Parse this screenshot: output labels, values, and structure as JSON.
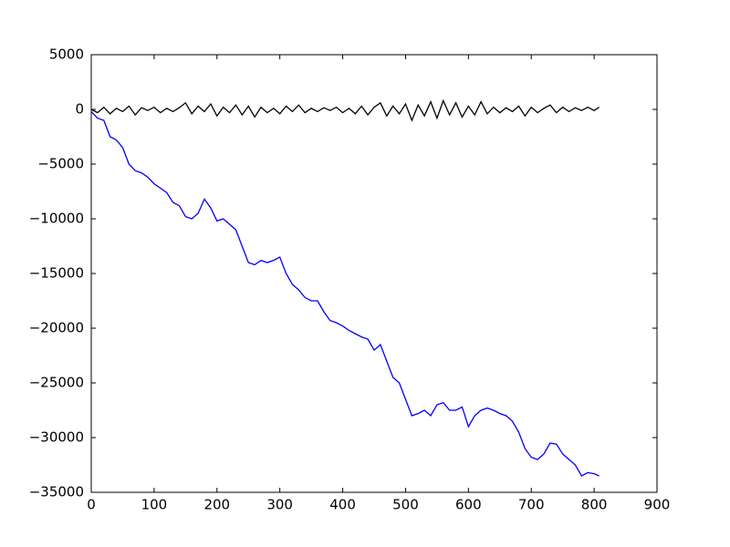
{
  "chart_data": {
    "type": "line",
    "x": [
      0,
      10,
      20,
      30,
      40,
      50,
      60,
      70,
      80,
      90,
      100,
      110,
      120,
      130,
      140,
      150,
      160,
      170,
      180,
      190,
      200,
      210,
      220,
      230,
      240,
      250,
      260,
      270,
      280,
      290,
      300,
      310,
      320,
      330,
      340,
      350,
      360,
      370,
      380,
      390,
      400,
      410,
      420,
      430,
      440,
      450,
      460,
      470,
      480,
      490,
      500,
      510,
      520,
      530,
      540,
      550,
      560,
      570,
      580,
      590,
      600,
      610,
      620,
      630,
      640,
      650,
      660,
      670,
      680,
      690,
      700,
      710,
      720,
      730,
      740,
      750,
      760,
      770,
      780,
      790,
      800,
      808
    ],
    "series": [
      {
        "color": "#000000",
        "values": [
          0,
          -300,
          200,
          -400,
          100,
          -200,
          300,
          -500,
          150,
          -100,
          200,
          -300,
          100,
          -200,
          150,
          600,
          -400,
          300,
          -200,
          500,
          -600,
          200,
          -300,
          400,
          -500,
          300,
          -700,
          200,
          -300,
          100,
          -400,
          300,
          -200,
          400,
          -300,
          100,
          -200,
          150,
          -100,
          200,
          -300,
          100,
          -400,
          300,
          -500,
          200,
          600,
          -600,
          300,
          -400,
          500,
          -1000,
          400,
          -600,
          700,
          -800,
          800,
          -500,
          600,
          -700,
          300,
          -500,
          700,
          -400,
          200,
          -300,
          150,
          -200,
          300,
          -600,
          200,
          -300,
          100,
          400,
          -300,
          200,
          -200,
          150,
          -100,
          200,
          -100,
          200
        ]
      },
      {
        "color": "#0000ff",
        "values": [
          -200,
          -800,
          -1000,
          -2500,
          -2800,
          -3500,
          -5000,
          -5600,
          -5800,
          -6200,
          -6800,
          -7200,
          -7600,
          -8500,
          -8800,
          -9800,
          -10000,
          -9500,
          -8200,
          -9000,
          -10200,
          -10000,
          -10500,
          -11000,
          -12500,
          -14000,
          -14200,
          -13800,
          -14000,
          -13800,
          -13500,
          -15000,
          -16000,
          -16500,
          -17200,
          -17500,
          -17500,
          -18500,
          -19300,
          -19500,
          -19800,
          -20200,
          -20500,
          -20800,
          -21000,
          -22000,
          -21500,
          -23000,
          -24500,
          -25000,
          -26500,
          -28000,
          -27800,
          -27500,
          -28000,
          -27000,
          -26800,
          -27500,
          -27500,
          -27200,
          -29000,
          -28000,
          -27500,
          -27300,
          -27500,
          -27800,
          -28000,
          -28500,
          -29500,
          -31000,
          -31800,
          -32000,
          -31500,
          -30500,
          -30600,
          -31500,
          -32000,
          -32500,
          -33500,
          -33200,
          -33300,
          -33500
        ]
      }
    ],
    "xlim": [
      0,
      900
    ],
    "xticks": [
      0,
      100,
      200,
      300,
      400,
      500,
      600,
      700,
      800,
      900
    ],
    "ylim": [
      -35000,
      5000
    ],
    "yticks": [
      {
        "value": -35000,
        "label": "−35000"
      },
      {
        "value": -30000,
        "label": "−30000"
      },
      {
        "value": -25000,
        "label": "−25000"
      },
      {
        "value": -20000,
        "label": "−20000"
      },
      {
        "value": -15000,
        "label": "−15000"
      },
      {
        "value": -10000,
        "label": "−10000"
      },
      {
        "value": -5000,
        "label": "−5000"
      },
      0,
      5000
    ],
    "grid": false
  }
}
